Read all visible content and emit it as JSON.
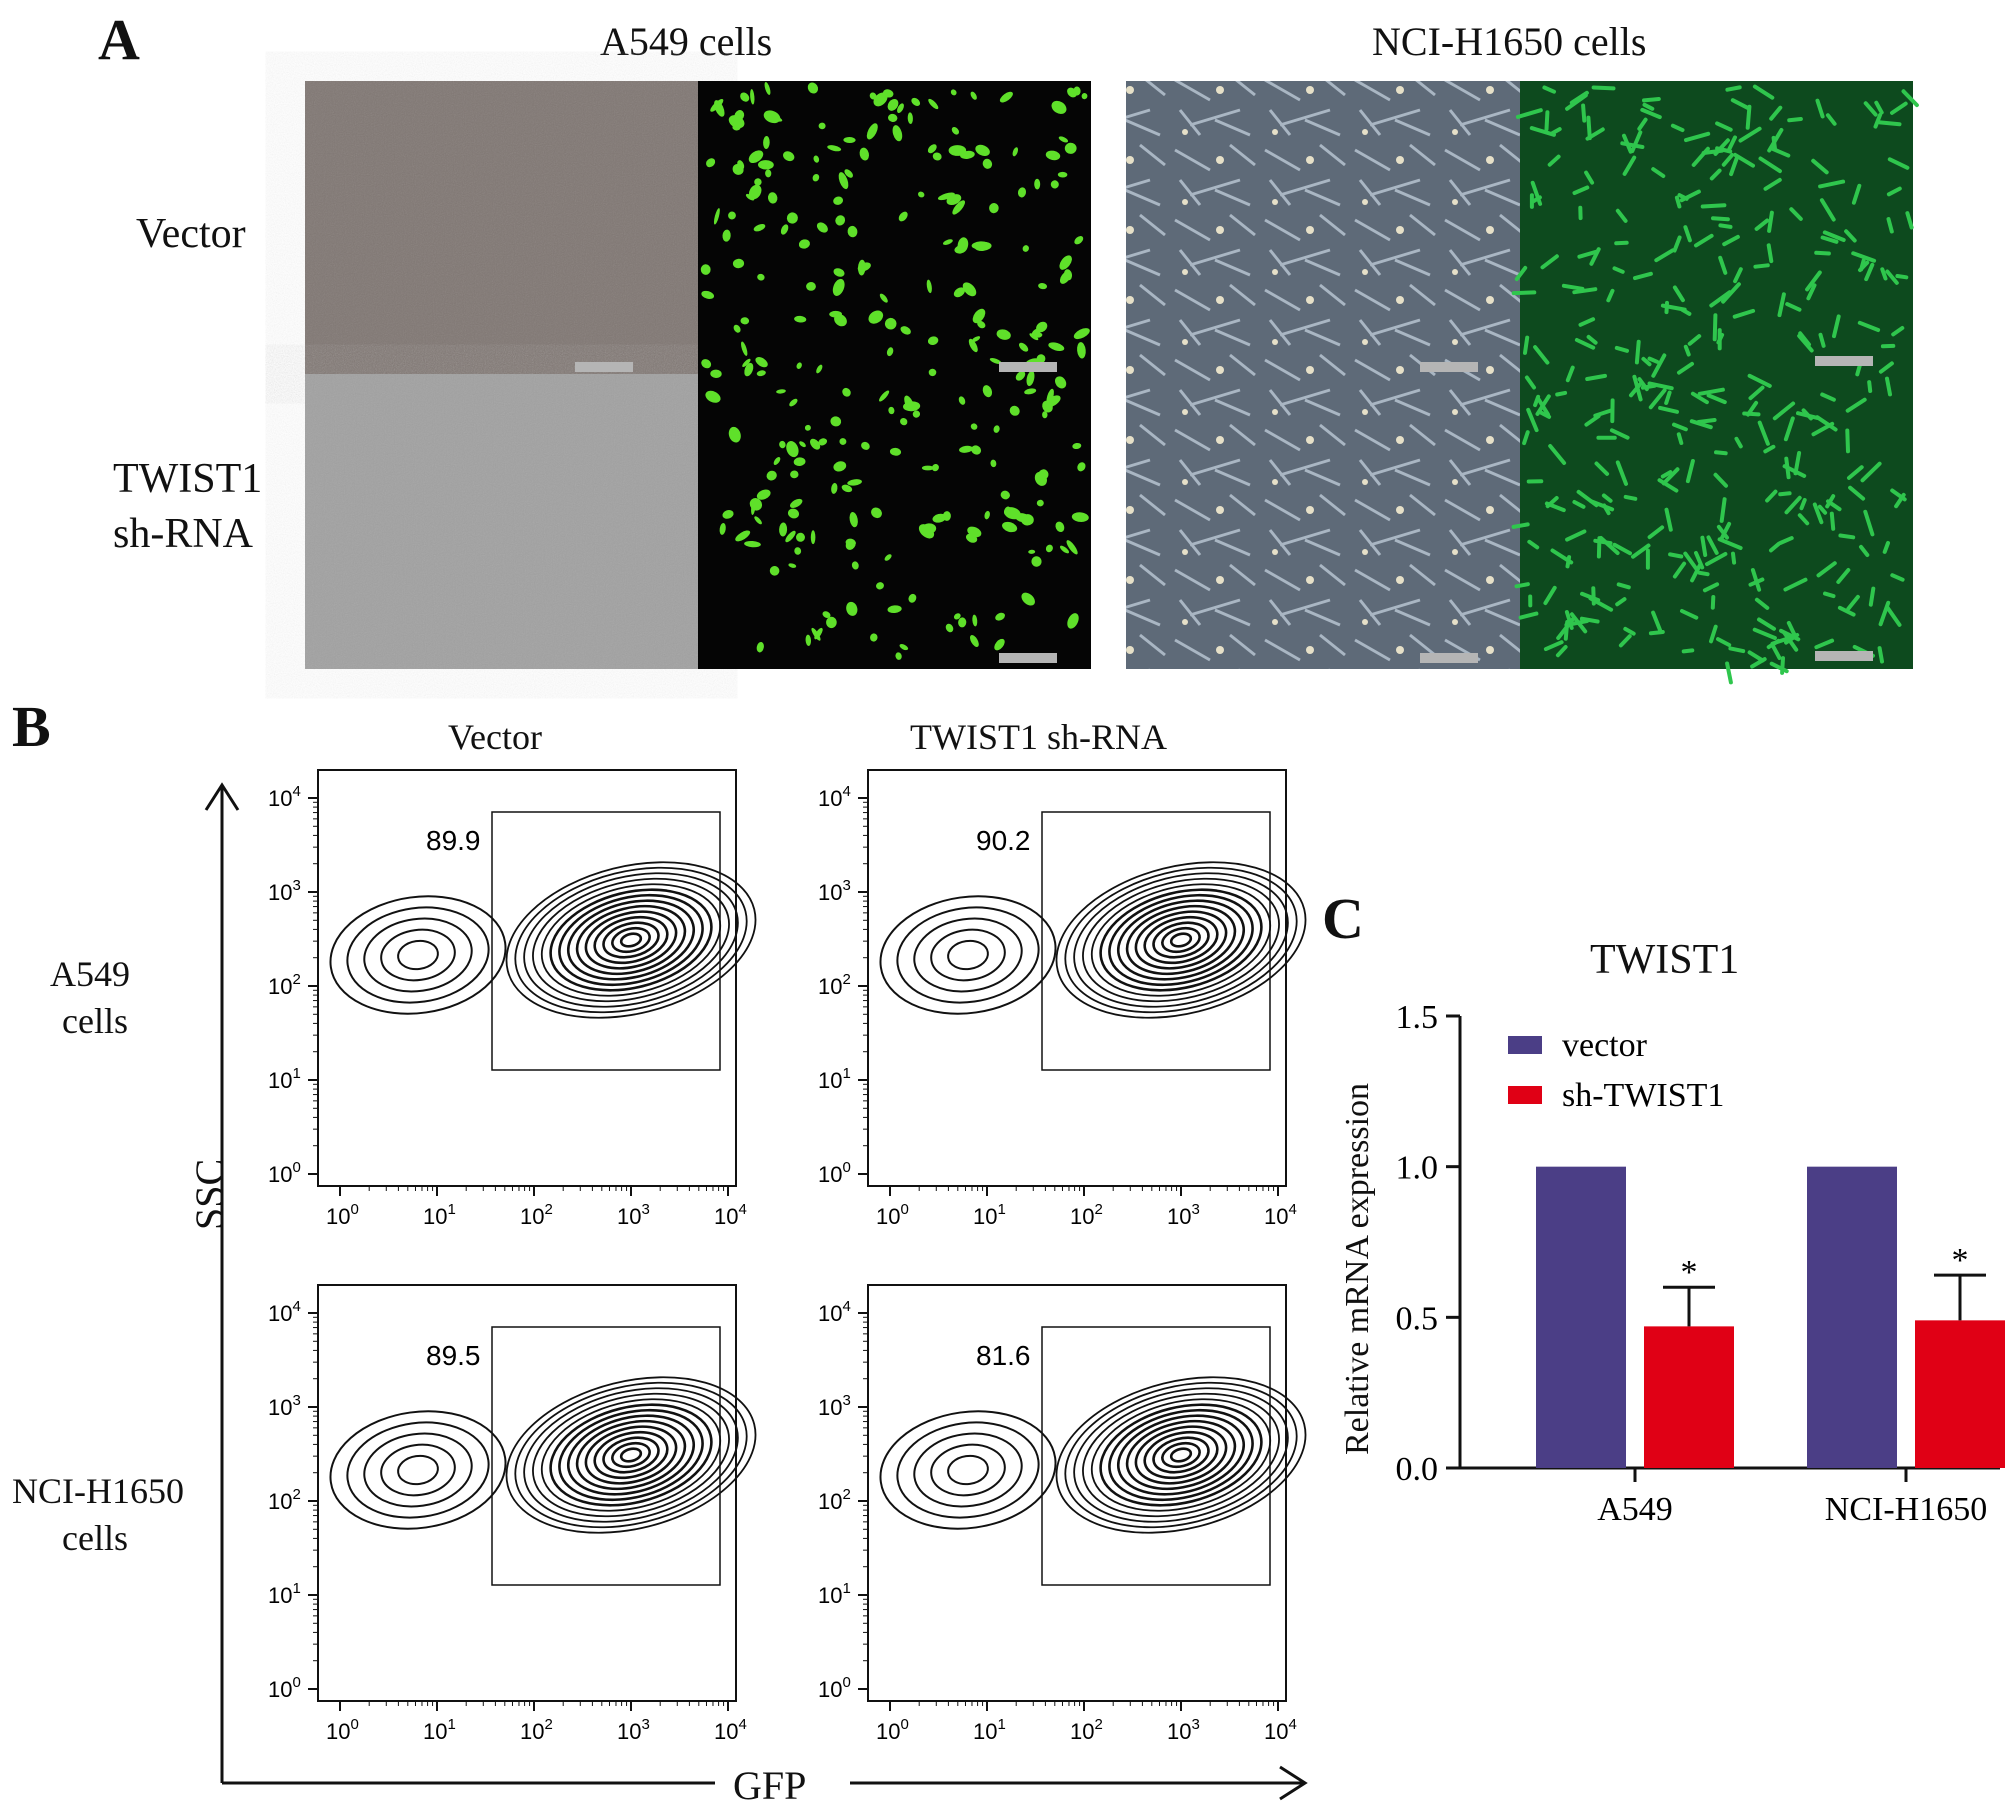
{
  "panel_a": {
    "letter": "A",
    "titles": [
      "A549 cells",
      "NCI-H1650 cells"
    ],
    "row_labels": [
      [
        "Vector"
      ],
      [
        "TWIST1",
        "sh-RNA"
      ]
    ]
  },
  "panel_b": {
    "letter": "B",
    "col_titles": [
      "Vector",
      "TWIST1 sh-RNA"
    ],
    "row_labels": [
      [
        "A549",
        "cells"
      ],
      [
        "NCI-H1650",
        "cells"
      ]
    ],
    "gate_values": [
      [
        "89.9",
        "90.2"
      ],
      [
        "89.5",
        "81.6"
      ]
    ],
    "x_axis_label": "GFP",
    "y_axis_label": "SSC",
    "tick_exponents": [
      "0",
      "1",
      "2",
      "3",
      "4"
    ],
    "tick_base": "10"
  },
  "panel_c": {
    "letter": "C",
    "chart_data": {
      "type": "bar",
      "title": "TWIST1",
      "ylabel": "Relative mRNA expression",
      "xlabel": "",
      "categories": [
        "A549",
        "NCI-H1650"
      ],
      "ylim": [
        0,
        1.5
      ],
      "yticks": [
        "0.0",
        "0.5",
        "1.0",
        "1.5"
      ],
      "series": [
        {
          "name": "vector",
          "color": "#4b3e86",
          "values": [
            1.0,
            1.0
          ],
          "errors": [
            0,
            0
          ]
        },
        {
          "name": "sh-TWIST1",
          "color": "#e00015",
          "values": [
            0.47,
            0.49
          ],
          "errors": [
            0.13,
            0.15
          ]
        }
      ],
      "significance": [
        "*",
        "*"
      ],
      "legend_position": "top-left"
    }
  }
}
